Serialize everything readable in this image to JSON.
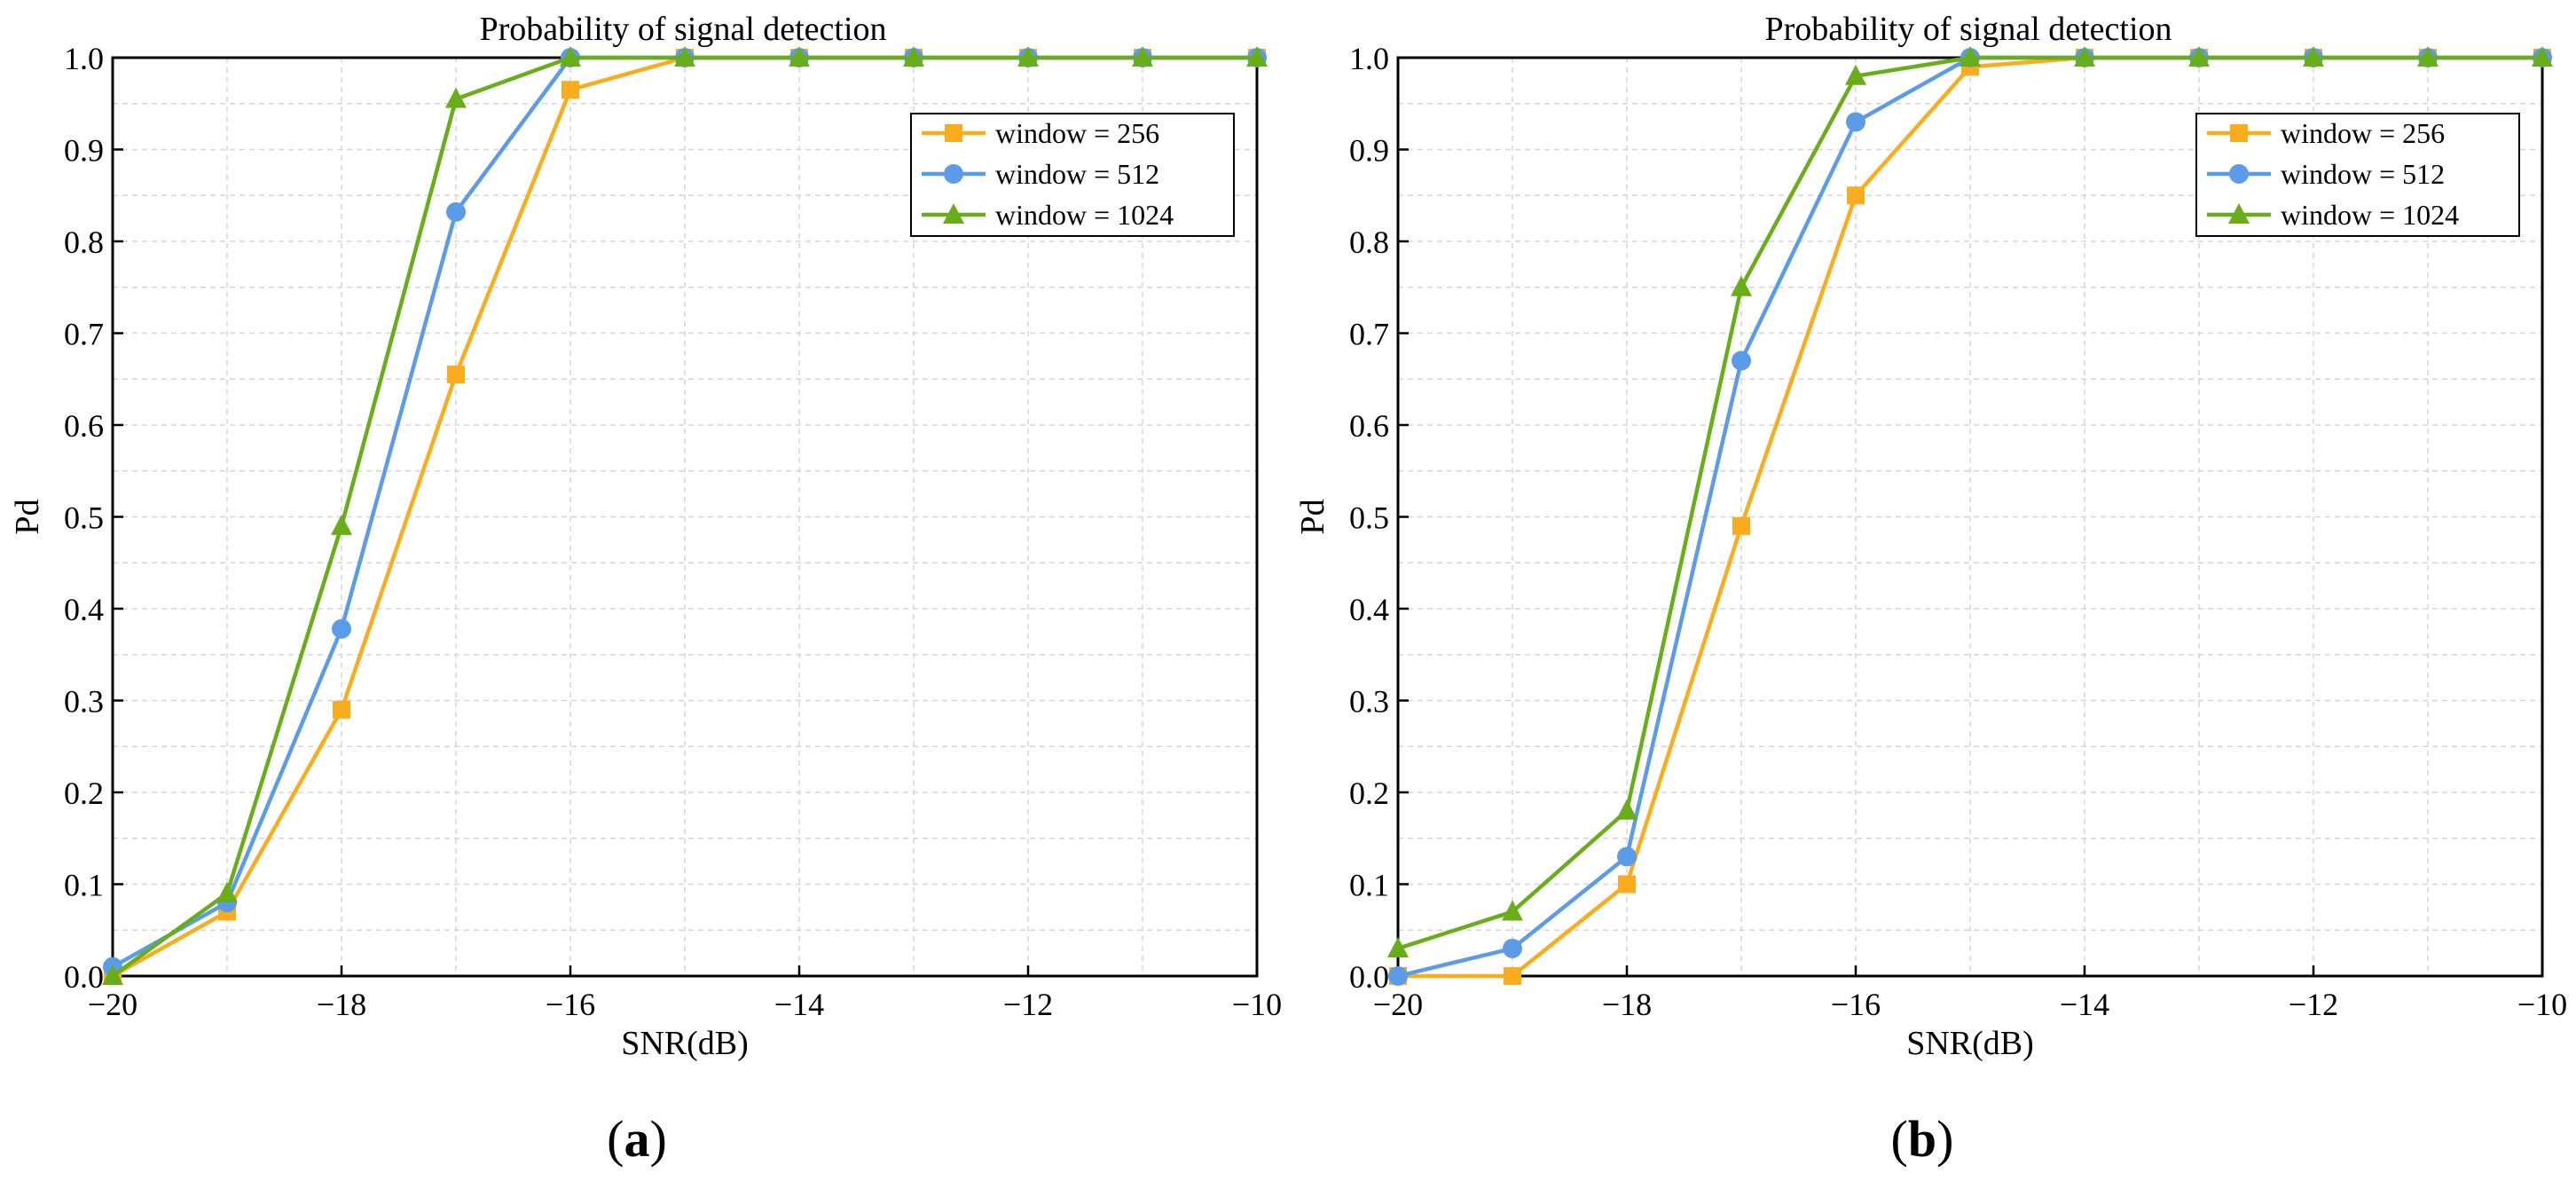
{
  "chart_data": [
    {
      "type": "line",
      "panel_label": "a",
      "title": "Probability of signal detection",
      "xlabel": "SNR(dB)",
      "ylabel": "Pd",
      "xlim": [
        -20,
        -10
      ],
      "ylim": [
        0.0,
        1.0
      ],
      "xticks": [
        -20,
        -18,
        -16,
        -14,
        -12,
        -10
      ],
      "xtick_labels": [
        "−20",
        "−18",
        "−16",
        "−14",
        "−12",
        "−10"
      ],
      "yticks": [
        0.0,
        0.1,
        0.2,
        0.3,
        0.4,
        0.5,
        0.6,
        0.7,
        0.8,
        0.9,
        1.0
      ],
      "ytick_labels": [
        "0.0",
        "0.1",
        "0.2",
        "0.3",
        "0.4",
        "0.5",
        "0.6",
        "0.7",
        "0.8",
        "0.9",
        "1.0"
      ],
      "grid": true,
      "legend_position": "top-right",
      "x": [
        -20,
        -19,
        -18,
        -17,
        -16,
        -15,
        -14,
        -13,
        -12,
        -11,
        -10
      ],
      "series": [
        {
          "name": "window = 256",
          "marker": "square",
          "color": "#F9AC1E",
          "values": [
            0.0,
            0.07,
            0.29,
            0.655,
            0.965,
            1.0,
            1.0,
            1.0,
            1.0,
            1.0,
            1.0
          ]
        },
        {
          "name": "window = 512",
          "marker": "circle",
          "color": "#5B9BE8",
          "values": [
            0.01,
            0.08,
            0.378,
            0.832,
            1.0,
            1.0,
            1.0,
            1.0,
            1.0,
            1.0,
            1.0
          ]
        },
        {
          "name": "window = 1024",
          "marker": "triangle",
          "color": "#6AAD1A",
          "values": [
            0.0,
            0.09,
            0.49,
            0.955,
            1.0,
            1.0,
            1.0,
            1.0,
            1.0,
            1.0,
            1.0
          ]
        }
      ]
    },
    {
      "type": "line",
      "panel_label": "b",
      "title": "Probability of signal detection",
      "xlabel": "SNR(dB)",
      "ylabel": "Pd",
      "xlim": [
        -20,
        -10
      ],
      "ylim": [
        0.0,
        1.0
      ],
      "xticks": [
        -20,
        -18,
        -16,
        -14,
        -12,
        -10
      ],
      "xtick_labels": [
        "−20",
        "−18",
        "−16",
        "−14",
        "−12",
        "−10"
      ],
      "yticks": [
        0.0,
        0.1,
        0.2,
        0.3,
        0.4,
        0.5,
        0.6,
        0.7,
        0.8,
        0.9,
        1.0
      ],
      "ytick_labels": [
        "0.0",
        "0.1",
        "0.2",
        "0.3",
        "0.4",
        "0.5",
        "0.6",
        "0.7",
        "0.8",
        "0.9",
        "1.0"
      ],
      "grid": true,
      "legend_position": "top-right",
      "x": [
        -20,
        -19,
        -18,
        -17,
        -16,
        -15,
        -14,
        -13,
        -12,
        -11,
        -10
      ],
      "series": [
        {
          "name": "window = 256",
          "marker": "square",
          "color": "#F9AC1E",
          "values": [
            0.0,
            0.0,
            0.1,
            0.49,
            0.85,
            0.99,
            1.0,
            1.0,
            1.0,
            1.0,
            1.0
          ]
        },
        {
          "name": "window = 512",
          "marker": "circle",
          "color": "#5B9BE8",
          "values": [
            0.0,
            0.03,
            0.13,
            0.67,
            0.93,
            1.0,
            1.0,
            1.0,
            1.0,
            1.0,
            1.0
          ]
        },
        {
          "name": "window = 1024",
          "marker": "triangle",
          "color": "#6AAD1A",
          "values": [
            0.03,
            0.07,
            0.18,
            0.75,
            0.98,
            1.0,
            1.0,
            1.0,
            1.0,
            1.0,
            1.0
          ]
        }
      ]
    }
  ]
}
